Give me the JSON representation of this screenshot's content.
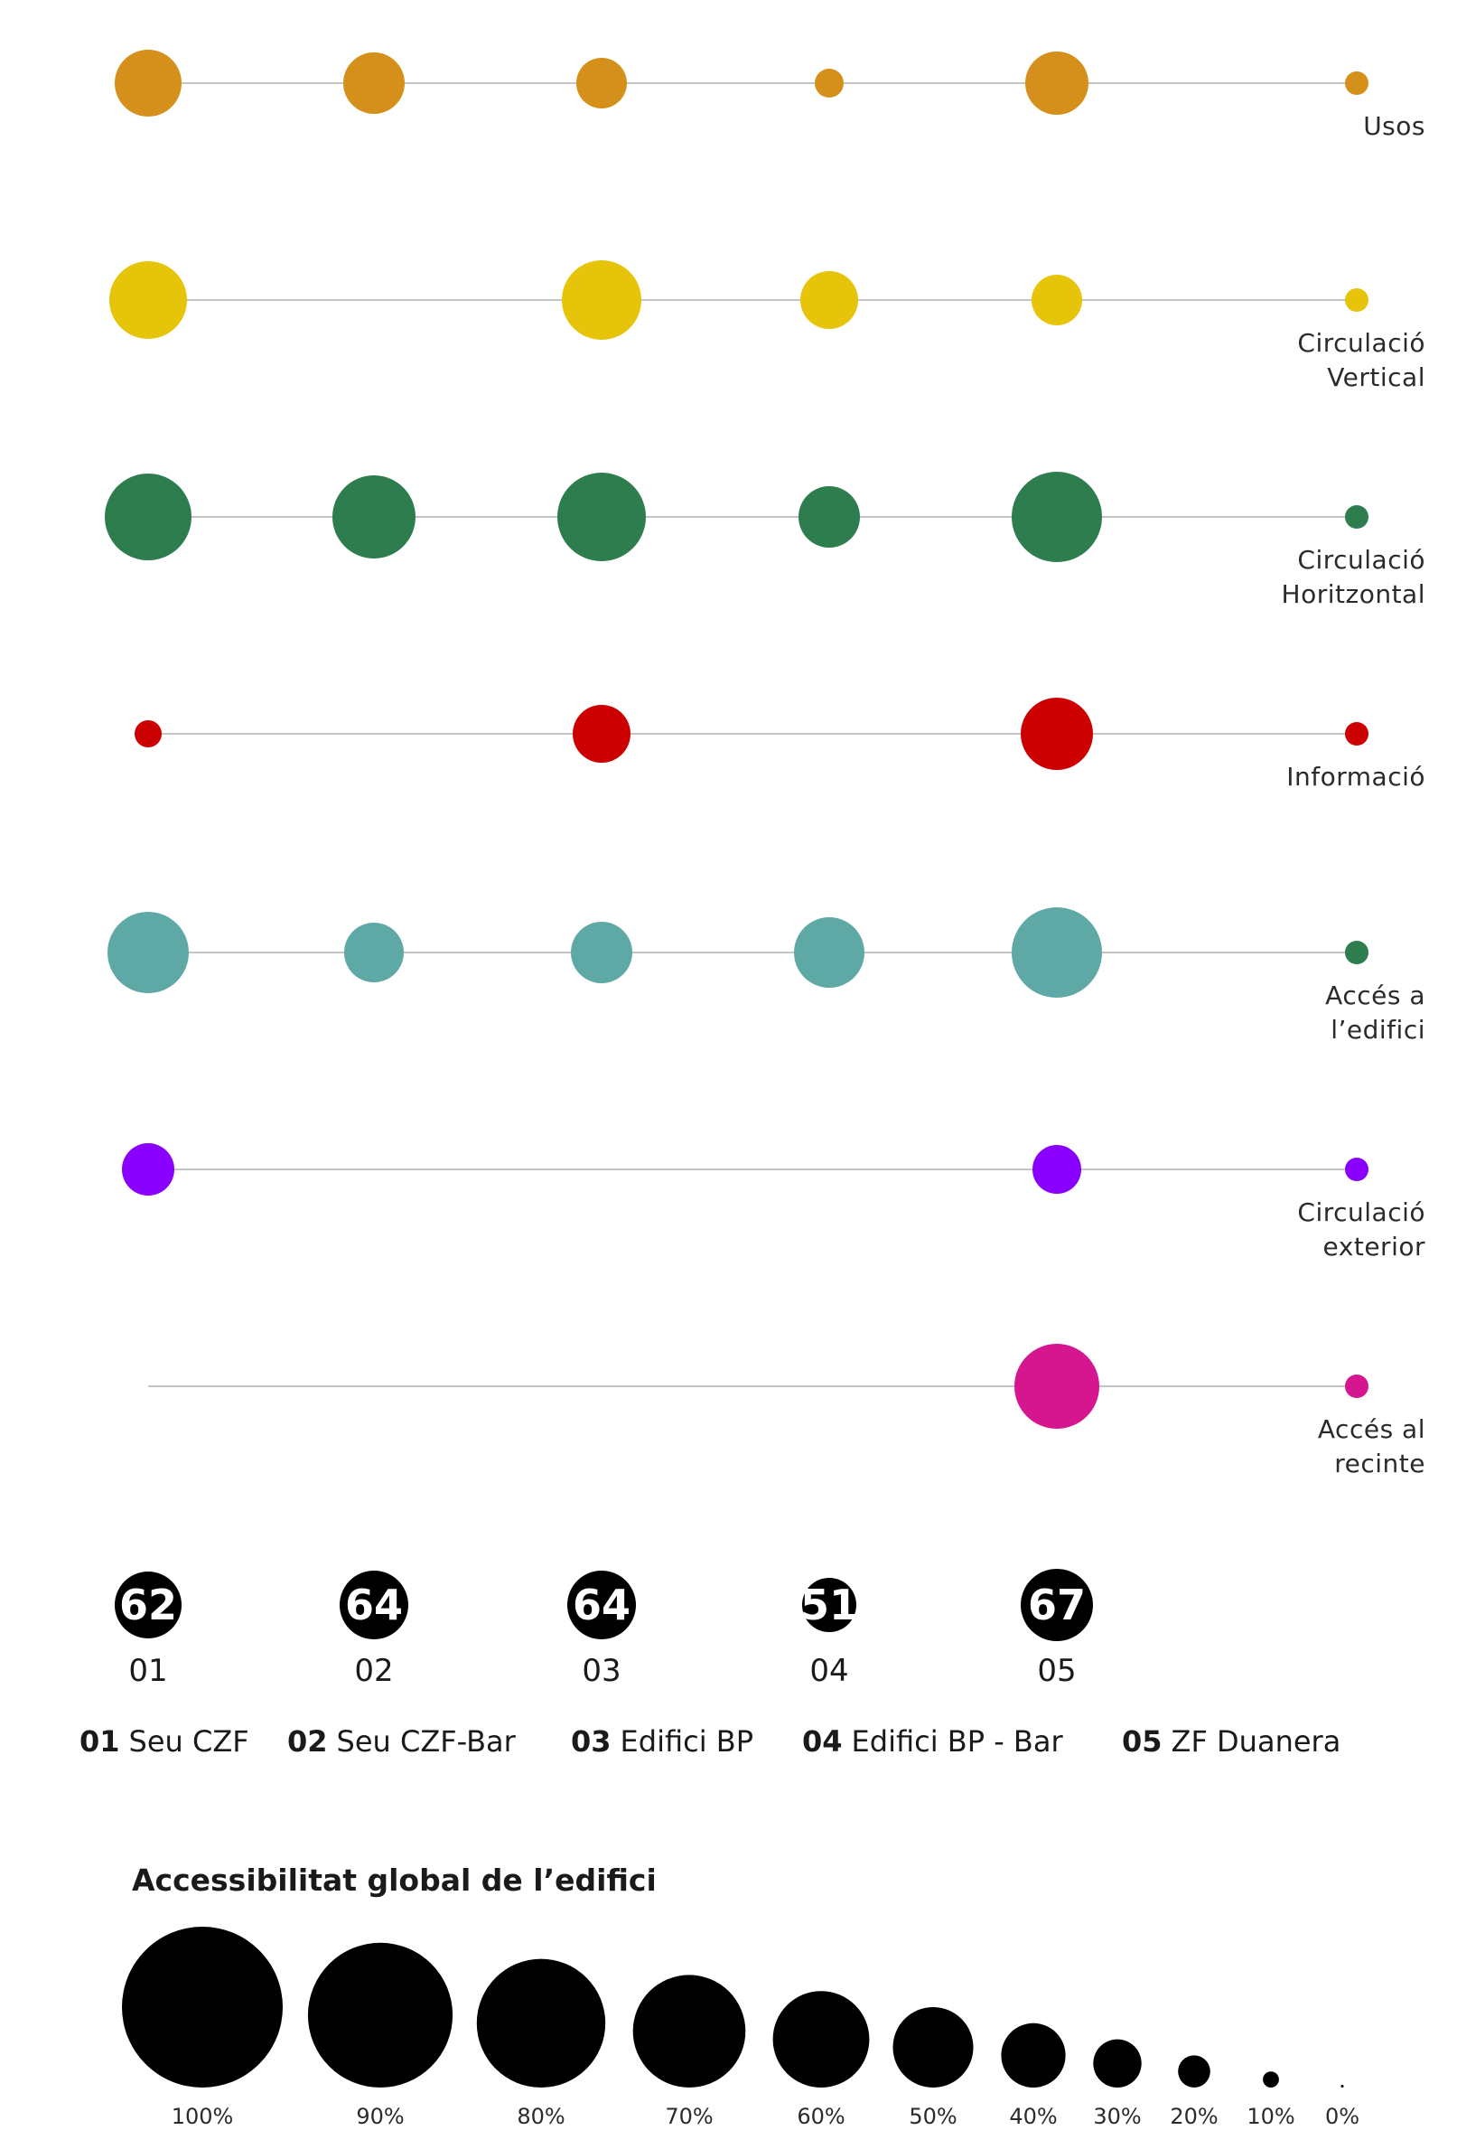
{
  "chart_data": {
    "type": "bubble-matrix",
    "rows": [
      {
        "label_lines": [
          "Usos"
        ],
        "color": "#d4901a",
        "values": [
          37,
          34,
          28,
          16,
          35,
          null
        ],
        "legend_value": 13
      },
      {
        "label_lines": [
          "Circulació",
          "Vertical"
        ],
        "color": "#e6c40a",
        "values": [
          43,
          null,
          44,
          32,
          28,
          null
        ],
        "legend_value": 13
      },
      {
        "label_lines": [
          "Circulació",
          "Horitzontal"
        ],
        "color": "#2e7d4f",
        "values": [
          48,
          46,
          49,
          34,
          50,
          null
        ],
        "legend_value": 13
      },
      {
        "label_lines": [
          "Informació"
        ],
        "color": "#cc0000",
        "values": [
          15,
          null,
          32,
          null,
          40,
          null
        ],
        "legend_value": 13
      },
      {
        "label_lines": [
          "Accés a",
          "l’edifici"
        ],
        "color": "#5ea9a6",
        "values": [
          45,
          33,
          34,
          39,
          50,
          null
        ],
        "legend_value": 13,
        "legend_color": "#2e7d4f"
      },
      {
        "label_lines": [
          "Circulació",
          "exterior"
        ],
        "color": "#8a00ff",
        "values": [
          29,
          null,
          null,
          null,
          27,
          null
        ],
        "legend_value": 13
      },
      {
        "label_lines": [
          "Accés al",
          "recinte"
        ],
        "color": "#d6168f",
        "values": [
          null,
          null,
          null,
          null,
          47,
          null
        ],
        "legend_value": 13
      }
    ],
    "totals": [
      {
        "id": "01",
        "value": "62",
        "size": 37
      },
      {
        "id": "02",
        "value": "64",
        "size": 38
      },
      {
        "id": "03",
        "value": "64",
        "size": 38
      },
      {
        "id": "04",
        "value": "51",
        "size": 30
      },
      {
        "id": "05",
        "value": "67",
        "size": 40
      }
    ],
    "buildings": [
      {
        "code": "01",
        "name": "Seu CZF"
      },
      {
        "code": "02",
        "name": "Seu CZF-Bar"
      },
      {
        "code": "03",
        "name": "Edifici BP"
      },
      {
        "code": "04",
        "name": "Edifici BP - Bar"
      },
      {
        "code": "05",
        "name": "ZF Duanera"
      }
    ],
    "scale": {
      "title": "Accessibilitat global de l’edifici",
      "items": [
        {
          "label": "100%",
          "value": 100
        },
        {
          "label": "90%",
          "value": 90
        },
        {
          "label": "80%",
          "value": 80
        },
        {
          "label": "70%",
          "value": 70
        },
        {
          "label": "60%",
          "value": 60
        },
        {
          "label": "50%",
          "value": 50
        },
        {
          "label": "40%",
          "value": 40
        },
        {
          "label": "30%",
          "value": 30
        },
        {
          "label": "20%",
          "value": 20
        },
        {
          "label": "10%",
          "value": 10
        },
        {
          "label": "0%",
          "value": 0
        }
      ]
    }
  }
}
